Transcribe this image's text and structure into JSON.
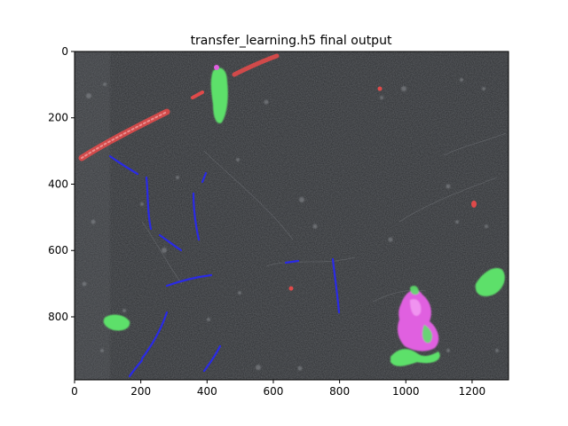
{
  "figure": {
    "title": "transfer_learning.h5 final output"
  },
  "axes": {
    "x_ticks": [
      "0",
      "200",
      "400",
      "600",
      "800",
      "1000",
      "1200"
    ],
    "y_ticks": [
      "0",
      "200",
      "400",
      "600",
      "800"
    ],
    "xlim": [
      0,
      1310
    ],
    "ylim_inverted": [
      990,
      0
    ]
  },
  "image": {
    "description_colors": {
      "background": "#2b2d30",
      "red_class": "#e04a4a",
      "blue_class": "#2a2ae6",
      "green_class": "#5de06a",
      "magenta_class": "#e060e0"
    }
  }
}
